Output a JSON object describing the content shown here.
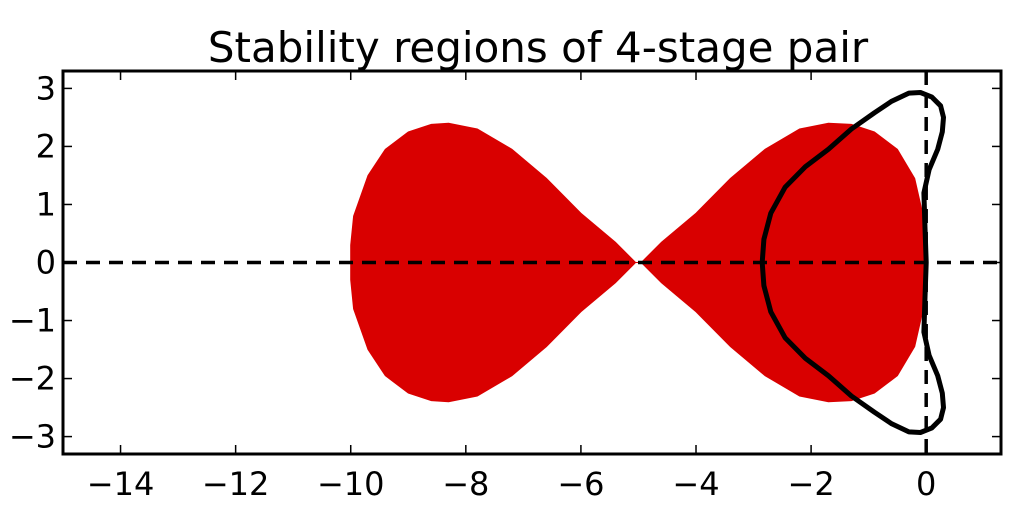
{
  "chart_data": {
    "type": "area",
    "title": "Stability regions of 4-stage pair",
    "xlabel": "",
    "ylabel": "",
    "xlim": [
      -15,
      1.3
    ],
    "ylim": [
      -3.3,
      3.3
    ],
    "grid": false,
    "x_ticks": [
      -14,
      -12,
      -10,
      -8,
      -6,
      -4,
      -2,
      0
    ],
    "x_tick_labels": [
      "−14",
      "−12",
      "−10",
      "−8",
      "−6",
      "−4",
      "−2",
      "0"
    ],
    "y_ticks": [
      3,
      2,
      1,
      0,
      -1,
      -2,
      -3
    ],
    "y_tick_labels": [
      "3",
      "2",
      "1",
      "0",
      "−1",
      "−2",
      "−3"
    ],
    "reference_lines": [
      {
        "orientation": "horizontal",
        "value": 0,
        "style": "dashed",
        "color": "#000000"
      },
      {
        "orientation": "vertical",
        "value": 0,
        "style": "dashed",
        "color": "#000000"
      }
    ],
    "series": [
      {
        "kind": "filled-region",
        "color": "#d90000",
        "x": [
          -5.05,
          -5.4,
          -6.0,
          -6.6,
          -7.2,
          -7.8,
          -8.3,
          -8.6,
          -9.0,
          -9.4,
          -9.7,
          -9.95,
          -10.0,
          -10.0,
          -9.95,
          -9.7,
          -9.4,
          -9.0,
          -8.6,
          -8.3,
          -7.8,
          -7.2,
          -6.6,
          -6.0,
          -5.4,
          -5.05,
          -4.95,
          -4.6,
          -4.0,
          -3.4,
          -2.8,
          -2.2,
          -1.7,
          -1.3,
          -0.9,
          -0.5,
          -0.2,
          -0.05,
          0.0,
          0.0,
          -0.05,
          -0.2,
          -0.5,
          -0.9,
          -1.3,
          -1.7,
          -2.2,
          -2.8,
          -3.4,
          -4.0,
          -4.6,
          -4.95
        ],
        "y": [
          0.0,
          0.35,
          0.85,
          1.45,
          1.95,
          2.3,
          2.4,
          2.38,
          2.25,
          1.95,
          1.5,
          0.8,
          0.3,
          -0.3,
          -0.8,
          -1.5,
          -1.95,
          -2.25,
          -2.38,
          -2.4,
          -2.3,
          -1.95,
          -1.45,
          -0.85,
          -0.35,
          0.0,
          0.0,
          0.35,
          0.85,
          1.45,
          1.95,
          2.3,
          2.4,
          2.38,
          2.25,
          1.95,
          1.45,
          0.8,
          0.3,
          -0.3,
          -0.8,
          -1.45,
          -1.95,
          -2.25,
          -2.38,
          -2.4,
          -2.3,
          -1.95,
          -1.45,
          -0.85,
          -0.35,
          0.0
        ]
      },
      {
        "kind": "boundary-curve",
        "color": "#000000",
        "x": [
          0.0,
          -0.02,
          -0.04,
          0.05,
          0.2,
          0.28,
          0.3,
          0.25,
          0.1,
          -0.1,
          -0.3,
          -0.6,
          -0.9,
          -1.3,
          -1.7,
          -2.1,
          -2.45,
          -2.7,
          -2.82,
          -2.85,
          -2.85,
          -2.82,
          -2.7,
          -2.45,
          -2.1,
          -1.7,
          -1.3,
          -0.9,
          -0.6,
          -0.3,
          -0.1,
          0.1,
          0.25,
          0.3,
          0.28,
          0.2,
          0.05,
          -0.04,
          -0.02,
          0.0
        ],
        "y": [
          0.0,
          0.6,
          1.2,
          1.6,
          1.95,
          2.25,
          2.5,
          2.7,
          2.85,
          2.93,
          2.92,
          2.78,
          2.58,
          2.3,
          1.95,
          1.65,
          1.3,
          0.85,
          0.4,
          0.0,
          0.0,
          -0.4,
          -0.85,
          -1.3,
          -1.65,
          -1.95,
          -2.3,
          -2.58,
          -2.78,
          -2.92,
          -2.93,
          -2.85,
          -2.7,
          -2.5,
          -2.25,
          -1.95,
          -1.6,
          -1.2,
          -0.6,
          0.0
        ]
      }
    ]
  }
}
